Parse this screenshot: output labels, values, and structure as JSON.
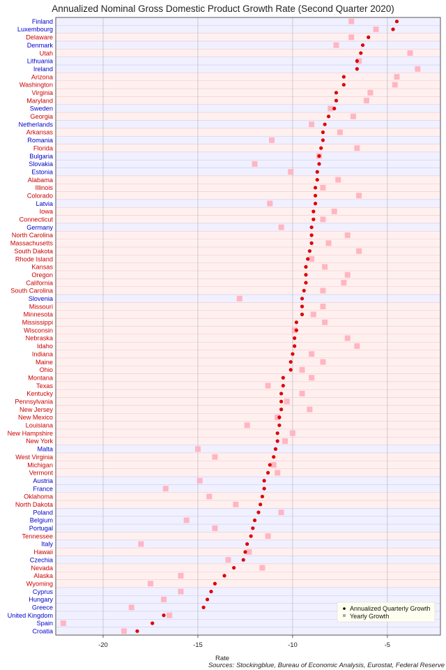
{
  "chart_data": {
    "type": "scatter",
    "title": "Annualized Nominal Gross Domestic Product Growth Rate (Second Quarter 2020)",
    "xlabel": "Rate",
    "source": "Sources: Stockingblue, Bureau of Economic Analysis, Eurostat, Federal Reserve",
    "xlim": [
      -22.5,
      -2.2
    ],
    "xticks": [
      -20,
      -15,
      -10,
      -5
    ],
    "xtick_labels": [
      "-20",
      "-15",
      "-10",
      "-5"
    ],
    "grid": true,
    "legend_position": "bottom-right",
    "colors": {
      "us_state_label": "#cc0000",
      "country_label": "#0000cc",
      "us_state_band": "#fff0f0",
      "country_band": "#f0f0ff",
      "quarterly_marker": "#dd0000",
      "yearly_marker": "#ffb6c1"
    },
    "series": [
      {
        "name": "Annualized Quarterly Growth",
        "marker": "circle"
      },
      {
        "name": "Yearly Growth",
        "marker": "square"
      }
    ],
    "rows": [
      {
        "name": "Finland",
        "group": "country",
        "quarterly": -4.5,
        "yearly": -6.9
      },
      {
        "name": "Luxembourg",
        "group": "country",
        "quarterly": -4.7,
        "yearly": -5.6
      },
      {
        "name": "Delaware",
        "group": "state",
        "quarterly": -6.0,
        "yearly": -6.9
      },
      {
        "name": "Denmark",
        "group": "country",
        "quarterly": -6.3,
        "yearly": -7.7
      },
      {
        "name": "Utah",
        "group": "state",
        "quarterly": -6.4,
        "yearly": -3.8
      },
      {
        "name": "Lithuania",
        "group": "country",
        "quarterly": -6.6,
        "yearly": -6.5
      },
      {
        "name": "Ireland",
        "group": "country",
        "quarterly": -6.6,
        "yearly": -3.4
      },
      {
        "name": "Arizona",
        "group": "state",
        "quarterly": -7.3,
        "yearly": -4.5
      },
      {
        "name": "Washington",
        "group": "state",
        "quarterly": -7.3,
        "yearly": -4.6
      },
      {
        "name": "Virginia",
        "group": "state",
        "quarterly": -7.7,
        "yearly": -5.9
      },
      {
        "name": "Maryland",
        "group": "state",
        "quarterly": -7.7,
        "yearly": -6.1
      },
      {
        "name": "Sweden",
        "group": "country",
        "quarterly": -7.8,
        "yearly": -8.0
      },
      {
        "name": "Georgia",
        "group": "state",
        "quarterly": -8.1,
        "yearly": -6.8
      },
      {
        "name": "Netherlands",
        "group": "country",
        "quarterly": -8.3,
        "yearly": -9.0
      },
      {
        "name": "Arkansas",
        "group": "state",
        "quarterly": -8.4,
        "yearly": -7.5
      },
      {
        "name": "Romania",
        "group": "country",
        "quarterly": -8.4,
        "yearly": -11.1
      },
      {
        "name": "Florida",
        "group": "state",
        "quarterly": -8.5,
        "yearly": -6.6
      },
      {
        "name": "Bulgaria",
        "group": "country",
        "quarterly": -8.6,
        "yearly": -8.6
      },
      {
        "name": "Slovakia",
        "group": "country",
        "quarterly": -8.6,
        "yearly": -12.0
      },
      {
        "name": "Estonia",
        "group": "country",
        "quarterly": -8.7,
        "yearly": -10.1
      },
      {
        "name": "Alabama",
        "group": "state",
        "quarterly": -8.7,
        "yearly": -7.6
      },
      {
        "name": "Illinois",
        "group": "state",
        "quarterly": -8.8,
        "yearly": -8.4
      },
      {
        "name": "Colorado",
        "group": "state",
        "quarterly": -8.8,
        "yearly": -6.5
      },
      {
        "name": "Latvia",
        "group": "country",
        "quarterly": -8.8,
        "yearly": -11.2
      },
      {
        "name": "Iowa",
        "group": "state",
        "quarterly": -8.9,
        "yearly": -7.8
      },
      {
        "name": "Connecticut",
        "group": "state",
        "quarterly": -8.9,
        "yearly": -8.4
      },
      {
        "name": "Germany",
        "group": "country",
        "quarterly": -9.0,
        "yearly": -10.6
      },
      {
        "name": "North Carolina",
        "group": "state",
        "quarterly": -9.0,
        "yearly": -7.1
      },
      {
        "name": "Massachusetts",
        "group": "state",
        "quarterly": -9.0,
        "yearly": -8.1
      },
      {
        "name": "South Dakota",
        "group": "state",
        "quarterly": -9.1,
        "yearly": -6.5
      },
      {
        "name": "Rhode Island",
        "group": "state",
        "quarterly": -9.2,
        "yearly": -9.0
      },
      {
        "name": "Kansas",
        "group": "state",
        "quarterly": -9.3,
        "yearly": -8.3
      },
      {
        "name": "Oregon",
        "group": "state",
        "quarterly": -9.3,
        "yearly": -7.1
      },
      {
        "name": "California",
        "group": "state",
        "quarterly": -9.3,
        "yearly": -7.3
      },
      {
        "name": "South Carolina",
        "group": "state",
        "quarterly": -9.4,
        "yearly": -8.4
      },
      {
        "name": "Slovenia",
        "group": "country",
        "quarterly": -9.5,
        "yearly": -12.8
      },
      {
        "name": "Missouri",
        "group": "state",
        "quarterly": -9.5,
        "yearly": -8.4
      },
      {
        "name": "Minnesota",
        "group": "state",
        "quarterly": -9.5,
        "yearly": -8.9
      },
      {
        "name": "Mississippi",
        "group": "state",
        "quarterly": -9.8,
        "yearly": -8.3
      },
      {
        "name": "Wisconsin",
        "group": "state",
        "quarterly": -9.8,
        "yearly": -9.9
      },
      {
        "name": "Nebraska",
        "group": "state",
        "quarterly": -9.9,
        "yearly": -7.1
      },
      {
        "name": "Idaho",
        "group": "state",
        "quarterly": -9.9,
        "yearly": -6.6
      },
      {
        "name": "Indiana",
        "group": "state",
        "quarterly": -10.0,
        "yearly": -9.0
      },
      {
        "name": "Maine",
        "group": "state",
        "quarterly": -10.1,
        "yearly": -8.4
      },
      {
        "name": "Ohio",
        "group": "state",
        "quarterly": -10.1,
        "yearly": -9.5
      },
      {
        "name": "Montana",
        "group": "state",
        "quarterly": -10.5,
        "yearly": -9.0
      },
      {
        "name": "Texas",
        "group": "state",
        "quarterly": -10.5,
        "yearly": -11.3
      },
      {
        "name": "Kentucky",
        "group": "state",
        "quarterly": -10.6,
        "yearly": -9.5
      },
      {
        "name": "Pennsylvania",
        "group": "state",
        "quarterly": -10.6,
        "yearly": -10.3
      },
      {
        "name": "New Jersey",
        "group": "state",
        "quarterly": -10.6,
        "yearly": -9.1
      },
      {
        "name": "New Mexico",
        "group": "state",
        "quarterly": -10.7,
        "yearly": -10.8
      },
      {
        "name": "Louisiana",
        "group": "state",
        "quarterly": -10.7,
        "yearly": -12.4
      },
      {
        "name": "New Hampshire",
        "group": "state",
        "quarterly": -10.8,
        "yearly": -10.0
      },
      {
        "name": "New York",
        "group": "state",
        "quarterly": -10.8,
        "yearly": -10.4
      },
      {
        "name": "Malta",
        "group": "country",
        "quarterly": -10.9,
        "yearly": -15.0
      },
      {
        "name": "West Virginia",
        "group": "state",
        "quarterly": -11.0,
        "yearly": -14.1
      },
      {
        "name": "Michigan",
        "group": "state",
        "quarterly": -11.2,
        "yearly": -11.0
      },
      {
        "name": "Vermont",
        "group": "state",
        "quarterly": -11.3,
        "yearly": -10.8
      },
      {
        "name": "Austria",
        "group": "country",
        "quarterly": -11.5,
        "yearly": -14.9
      },
      {
        "name": "France",
        "group": "country",
        "quarterly": -11.5,
        "yearly": -16.7
      },
      {
        "name": "Oklahoma",
        "group": "state",
        "quarterly": -11.6,
        "yearly": -14.4
      },
      {
        "name": "North Dakota",
        "group": "state",
        "quarterly": -11.7,
        "yearly": -13.0
      },
      {
        "name": "Poland",
        "group": "country",
        "quarterly": -11.8,
        "yearly": -10.6
      },
      {
        "name": "Belgium",
        "group": "country",
        "quarterly": -12.0,
        "yearly": -15.6
      },
      {
        "name": "Portugal",
        "group": "country",
        "quarterly": -12.1,
        "yearly": -14.1
      },
      {
        "name": "Tennessee",
        "group": "state",
        "quarterly": -12.2,
        "yearly": -11.3
      },
      {
        "name": "Italy",
        "group": "country",
        "quarterly": -12.4,
        "yearly": -18.0
      },
      {
        "name": "Hawaii",
        "group": "state",
        "quarterly": -12.5,
        "yearly": -12.3
      },
      {
        "name": "Czechia",
        "group": "country",
        "quarterly": -12.6,
        "yearly": -13.4
      },
      {
        "name": "Nevada",
        "group": "state",
        "quarterly": -13.1,
        "yearly": -11.6
      },
      {
        "name": "Alaska",
        "group": "state",
        "quarterly": -13.6,
        "yearly": -15.9
      },
      {
        "name": "Wyoming",
        "group": "state",
        "quarterly": -14.1,
        "yearly": -17.5
      },
      {
        "name": "Cyprus",
        "group": "country",
        "quarterly": -14.3,
        "yearly": -15.9
      },
      {
        "name": "Hungary",
        "group": "country",
        "quarterly": -14.5,
        "yearly": -16.8
      },
      {
        "name": "Greece",
        "group": "country",
        "quarterly": -14.7,
        "yearly": -18.5
      },
      {
        "name": "United Kingdom",
        "group": "country",
        "quarterly": -16.8,
        "yearly": -16.5
      },
      {
        "name": "Spain",
        "group": "country",
        "quarterly": -17.4,
        "yearly": -22.1
      },
      {
        "name": "Croatia",
        "group": "country",
        "quarterly": -18.2,
        "yearly": -18.9
      }
    ]
  }
}
